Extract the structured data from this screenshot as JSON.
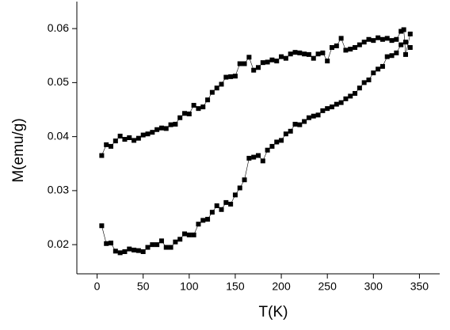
{
  "chart_data": {
    "type": "scatter-line",
    "x_label": "T(K)",
    "y_label": "M(emu/g)",
    "xlim": [
      -22,
      372
    ],
    "ylim": [
      0.0146,
      0.065
    ],
    "xticks": [
      0,
      50,
      100,
      150,
      200,
      250,
      300,
      350
    ],
    "yticks": [
      0.02,
      0.03,
      0.04,
      0.05,
      0.06
    ],
    "series": [
      {
        "color": "#000000",
        "x": [
          5,
          10,
          15,
          20,
          25,
          30,
          35,
          40,
          45,
          50,
          55,
          60,
          65,
          70,
          75,
          80,
          85,
          90,
          95,
          100,
          105,
          110,
          115,
          120,
          125,
          130,
          135,
          140,
          145,
          150,
          155,
          160,
          165,
          170,
          175,
          180,
          185,
          190,
          195,
          200,
          205,
          210,
          215,
          220,
          225,
          230,
          235,
          240,
          245,
          250,
          255,
          260,
          265,
          270,
          275,
          280,
          285,
          290,
          295,
          300,
          305,
          310,
          315,
          320,
          325,
          330,
          335,
          340
        ],
        "values": [
          0.0235,
          0.0202,
          0.0203,
          0.0188,
          0.0185,
          0.0187,
          0.0192,
          0.019,
          0.0189,
          0.0187,
          0.0195,
          0.02,
          0.02,
          0.0207,
          0.0195,
          0.0195,
          0.0205,
          0.021,
          0.022,
          0.0218,
          0.0218,
          0.0238,
          0.0245,
          0.0247,
          0.026,
          0.0272,
          0.0265,
          0.0278,
          0.0275,
          0.0292,
          0.0305,
          0.032,
          0.036,
          0.0362,
          0.0365,
          0.0355,
          0.0375,
          0.0382,
          0.039,
          0.0393,
          0.0405,
          0.041,
          0.0423,
          0.0422,
          0.0428,
          0.0435,
          0.0438,
          0.044,
          0.0448,
          0.0452,
          0.0455,
          0.046,
          0.0463,
          0.047,
          0.0475,
          0.048,
          0.049,
          0.05,
          0.0505,
          0.0518,
          0.0525,
          0.053,
          0.0548,
          0.055,
          0.0555,
          0.057,
          0.0575,
          0.0565
        ]
      },
      {
        "color": "#000000",
        "x": [
          340,
          335,
          333,
          330,
          325,
          320,
          315,
          310,
          305,
          300,
          295,
          290,
          285,
          280,
          275,
          270,
          265,
          260,
          255,
          250,
          245,
          240,
          235,
          230,
          225,
          220,
          215,
          210,
          205,
          200,
          195,
          190,
          185,
          180,
          175,
          170,
          165,
          160,
          155,
          150,
          145,
          140,
          135,
          130,
          125,
          120,
          115,
          110,
          105,
          100,
          95,
          90,
          85,
          80,
          75,
          70,
          65,
          60,
          55,
          50,
          45,
          40,
          35,
          30,
          25,
          20,
          15,
          10,
          5
        ],
        "values": [
          0.059,
          0.0552,
          0.0598,
          0.0595,
          0.058,
          0.0578,
          0.0582,
          0.058,
          0.0583,
          0.0578,
          0.058,
          0.0575,
          0.057,
          0.0565,
          0.0562,
          0.056,
          0.0582,
          0.0568,
          0.0565,
          0.054,
          0.0555,
          0.0553,
          0.0545,
          0.0552,
          0.0553,
          0.0555,
          0.0556,
          0.0553,
          0.0545,
          0.0548,
          0.054,
          0.0542,
          0.0538,
          0.0537,
          0.0528,
          0.0523,
          0.0547,
          0.0535,
          0.0535,
          0.0512,
          0.0511,
          0.051,
          0.0497,
          0.049,
          0.0482,
          0.0468,
          0.0455,
          0.0452,
          0.0458,
          0.0442,
          0.0443,
          0.0435,
          0.0423,
          0.0422,
          0.0415,
          0.0416,
          0.0413,
          0.0408,
          0.0405,
          0.0403,
          0.0397,
          0.0393,
          0.0398,
          0.0395,
          0.0401,
          0.0392,
          0.0382,
          0.0385,
          0.0365
        ]
      }
    ]
  }
}
